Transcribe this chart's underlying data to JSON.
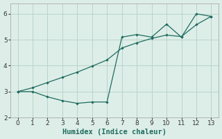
{
  "line1_x": [
    0,
    1,
    2,
    3,
    4,
    5,
    6,
    7,
    8,
    9,
    10,
    11,
    12,
    13
  ],
  "line1_y": [
    3.0,
    3.0,
    2.8,
    2.65,
    2.55,
    2.6,
    2.6,
    5.1,
    5.2,
    5.1,
    5.6,
    5.1,
    6.0,
    5.9
  ],
  "line2_x": [
    0,
    1,
    2,
    3,
    4,
    5,
    6,
    7,
    8,
    9,
    10,
    11,
    12,
    13
  ],
  "line2_y": [
    3.0,
    3.15,
    3.35,
    3.55,
    3.75,
    3.98,
    4.22,
    4.68,
    4.88,
    5.05,
    5.18,
    5.12,
    5.58,
    5.9
  ],
  "line_color": "#1e6b5e",
  "bg_color": "#ddeee8",
  "grid_color": "#b8d4cc",
  "xlabel": "Humidex (Indice chaleur)",
  "xlim": [
    -0.5,
    13.5
  ],
  "ylim": [
    2.0,
    6.4
  ],
  "xticks": [
    0,
    1,
    2,
    3,
    4,
    5,
    6,
    7,
    8,
    9,
    10,
    11,
    12,
    13
  ],
  "yticks": [
    2,
    3,
    4,
    5,
    6
  ],
  "xlabel_fontsize": 7.5,
  "tick_fontsize": 6.5
}
